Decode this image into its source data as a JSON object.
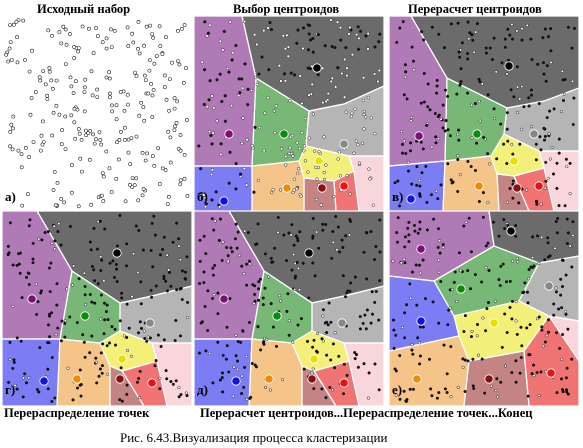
{
  "titles": {
    "a": "Исходный набор",
    "b": "Выбор центроидов",
    "c": "Перерасчет центроидов",
    "d": "Перераспределение точек",
    "e": "Перерасчет центроидов...Перераспределение точек...Конец"
  },
  "panel_labels": [
    "а)",
    "б)",
    "в)",
    "г)",
    "д)",
    "е)"
  ],
  "caption": "Рис. 6.43.Визуализация процесса кластеризации",
  "colors": {
    "dark_gray": "#6b6b6b",
    "purple": "#b07ab6",
    "green": "#77b877",
    "light_gray": "#b5b5b5",
    "orange": "#f5c488",
    "yellow": "#f3f07a",
    "blue": "#7c7cf5",
    "brown": "#c48484",
    "red": "#f07474",
    "pink": "#f8d6dc"
  },
  "centroid_colors": [
    "#000000",
    "#7a0f7a",
    "#0b8a0b",
    "#888888",
    "#f08a00",
    "#e8e000",
    "#1010ee",
    "#8a1010",
    "#ee1010"
  ]
}
